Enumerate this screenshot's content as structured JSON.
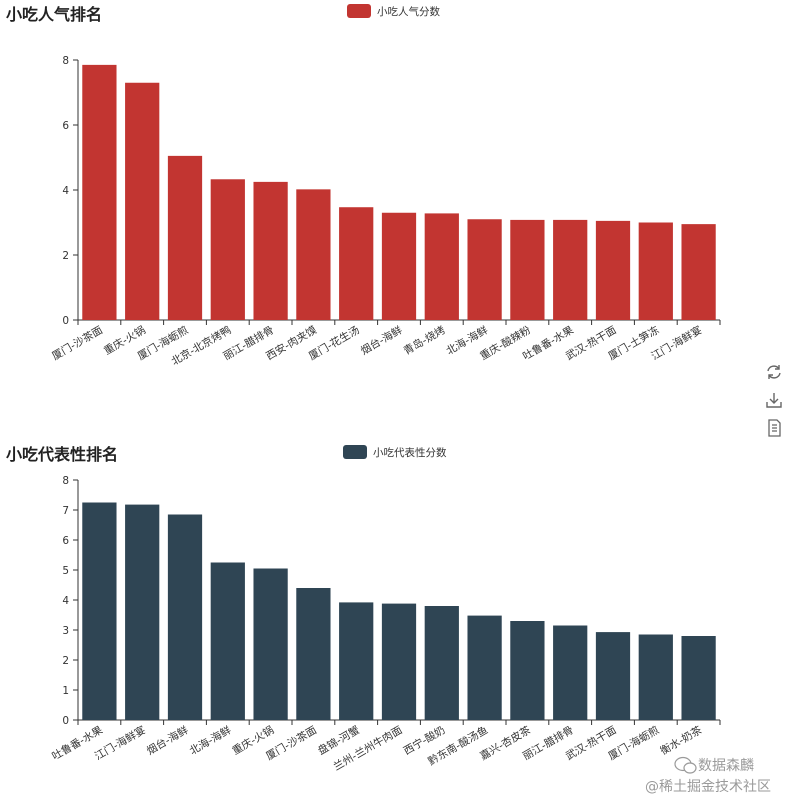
{
  "colors": {
    "popularity": "#c23531",
    "representative": "#2f4554",
    "axis": "#333333",
    "toolbox": "#666666",
    "watermark": "#9a9a9a"
  },
  "toolbox": {
    "icons": [
      "refresh-icon",
      "download-icon",
      "data-view-icon"
    ]
  },
  "watermark": {
    "wechat": "数据森麟",
    "site": "@稀土掘金技术社区"
  },
  "chart_data": [
    {
      "type": "bar",
      "title": "小吃人气排名",
      "legend": "小吃人气分数",
      "legend_position": "top-center",
      "ylim": [
        0,
        8
      ],
      "yticks": [
        0,
        2,
        4,
        6,
        8
      ],
      "grid": false,
      "categories": [
        "厦门-沙茶面",
        "重庆-火锅",
        "厦门-海蛎煎",
        "北京-北京烤鸭",
        "丽江-腊排骨",
        "西安-肉夹馍",
        "厦门-花生汤",
        "烟台-海鲜",
        "青岛-烧烤",
        "北海-海鲜",
        "重庆-酸辣粉",
        "吐鲁番-水果",
        "武汉-热干面",
        "厦门-土笋冻",
        "江门-海鲜宴"
      ],
      "values": [
        7.85,
        7.3,
        5.05,
        4.33,
        4.25,
        4.02,
        3.47,
        3.3,
        3.28,
        3.1,
        3.08,
        3.08,
        3.05,
        3.0,
        2.95
      ]
    },
    {
      "type": "bar",
      "title": "小吃代表性排名",
      "legend": "小吃代表性分数",
      "legend_position": "top-center",
      "ylim": [
        0,
        8
      ],
      "yticks": [
        0,
        1,
        2,
        3,
        4,
        5,
        6,
        7,
        8
      ],
      "grid": false,
      "categories": [
        "吐鲁番-水果",
        "江门-海鲜宴",
        "烟台-海鲜",
        "北海-海鲜",
        "重庆-火锅",
        "厦门-沙茶面",
        "盘锦-河蟹",
        "兰州-兰州牛肉面",
        "西宁-酸奶",
        "黔东南-酸汤鱼",
        "嘉兴-杏皮茶",
        "丽江-腊排骨",
        "武汉-热干面",
        "厦门-海蛎煎",
        "衡水-奶茶"
      ],
      "values": [
        7.25,
        7.18,
        6.85,
        5.25,
        5.05,
        4.4,
        3.92,
        3.88,
        3.8,
        3.48,
        3.3,
        3.15,
        2.93,
        2.85,
        2.8
      ]
    }
  ]
}
